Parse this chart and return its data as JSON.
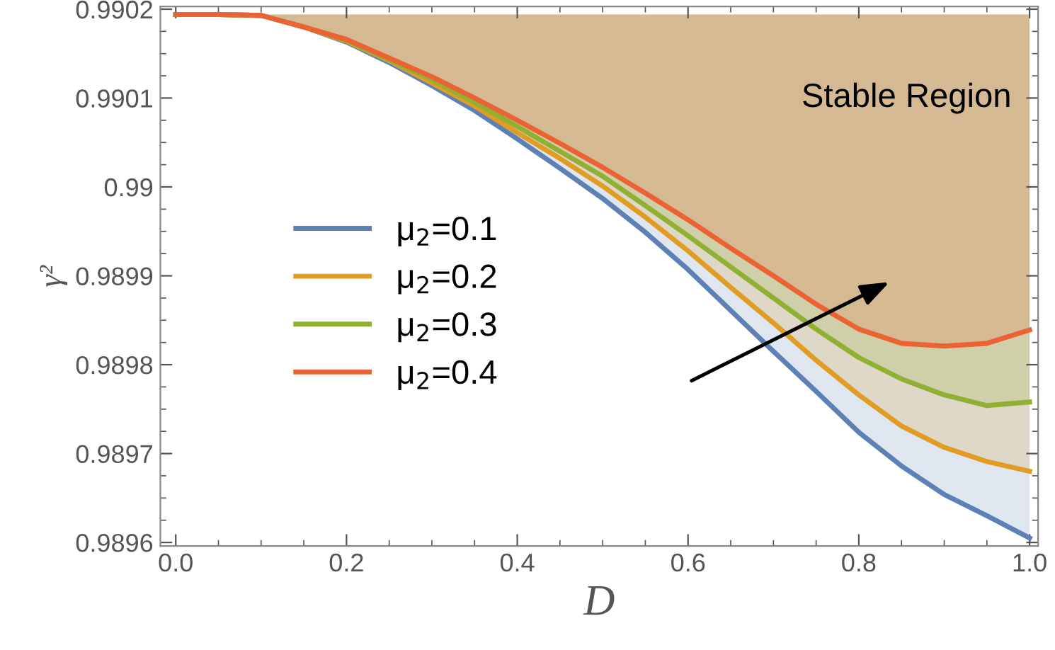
{
  "chart_data": {
    "type": "line",
    "xlabel": "D",
    "ylabel": "γ²",
    "x": [
      0,
      0.05,
      0.1,
      0.15,
      0.2,
      0.25,
      0.3,
      0.35,
      0.4,
      0.45,
      0.5,
      0.55,
      0.6,
      0.65,
      0.7,
      0.75,
      0.8,
      0.85,
      0.9,
      0.95,
      1.0
    ],
    "series": [
      {
        "name": "μ$_{2}$=0.1",
        "color": "#5e81b5",
        "values": [
          0.990194,
          0.990194,
          0.990193,
          0.99018,
          0.990163,
          0.99014,
          0.990114,
          0.990086,
          0.990054,
          0.990021,
          0.989987,
          0.989949,
          0.989907,
          0.989861,
          0.989815,
          0.98977,
          0.989724,
          0.989686,
          0.989654,
          0.98963,
          0.989605
        ]
      },
      {
        "name": "μ$_{2}$=0.2",
        "color": "#e19c24",
        "values": [
          0.990194,
          0.990194,
          0.990193,
          0.99018,
          0.990164,
          0.990142,
          0.990117,
          0.990091,
          0.990061,
          0.990032,
          0.990001,
          0.989966,
          0.989928,
          0.989887,
          0.989847,
          0.989805,
          0.989766,
          0.989731,
          0.989707,
          0.989691,
          0.98968
        ]
      },
      {
        "name": "μ$_{2}$=0.3",
        "color": "#8fb032",
        "values": [
          0.990194,
          0.990194,
          0.990193,
          0.99018,
          0.990165,
          0.990143,
          0.990121,
          0.990095,
          0.990068,
          0.99004,
          0.990012,
          0.989979,
          0.989945,
          0.98991,
          0.989875,
          0.98984,
          0.989808,
          0.989784,
          0.989766,
          0.989754,
          0.989758
        ]
      },
      {
        "name": "μ$_{2}$=0.4",
        "color": "#eb6235",
        "values": [
          0.990194,
          0.990194,
          0.990193,
          0.99018,
          0.990166,
          0.990145,
          0.990124,
          0.9901,
          0.990075,
          0.990049,
          0.990022,
          0.989993,
          0.989963,
          0.989931,
          0.9899,
          0.989868,
          0.98984,
          0.989824,
          0.989821,
          0.989824,
          0.989839
        ]
      }
    ],
    "xlim": [
      -0.018,
      1.01
    ],
    "ylim": [
      0.989596,
      0.990203
    ],
    "xticks": [
      {
        "value": 0,
        "label": "0.0"
      },
      0.2,
      0.4,
      0.6,
      0.8,
      {
        "value": 1.0,
        "label": "1.0"
      }
    ],
    "yticks": [
      0.9896,
      0.9897,
      0.9898,
      0.9899,
      0.99,
      0.9901,
      0.9902
    ],
    "annotations": [
      "Stable Region"
    ],
    "legend": "center left",
    "grid": false,
    "marker": "none",
    "line_style": "solid"
  }
}
